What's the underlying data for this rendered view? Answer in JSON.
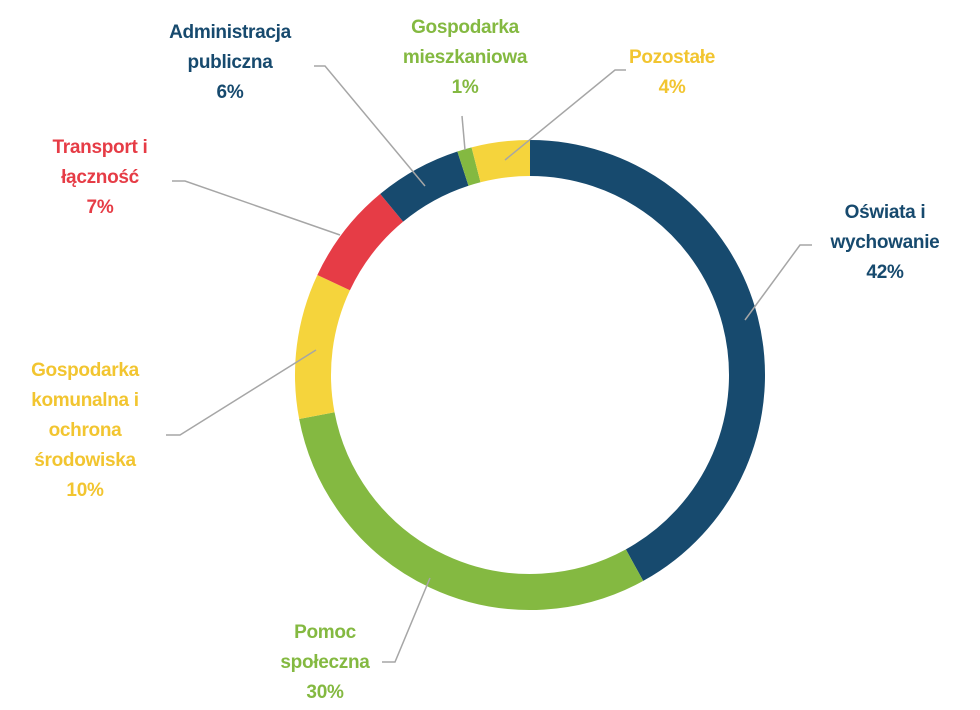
{
  "chart_data": {
    "type": "donut",
    "categories": [
      "Oświata i\nwychowanie",
      "Pomoc\nspołeczna",
      "Gospodarka\nkomunalna i\nochrona\nśrodowiska",
      "Transport i\nłączność",
      "Administracja\npubliczna",
      "Gospodarka\nmieszkaniowa",
      "Pozostałe"
    ],
    "values": [
      42,
      30,
      10,
      7,
      6,
      1,
      4
    ],
    "value_labels": [
      "42%",
      "30%",
      "10%",
      "7%",
      "6%",
      "1%",
      "4%"
    ],
    "colors": [
      "#174a6e",
      "#84b941",
      "#f5d43c",
      "#e63c46",
      "#174a6e",
      "#84b941",
      "#f5d43c"
    ]
  }
}
